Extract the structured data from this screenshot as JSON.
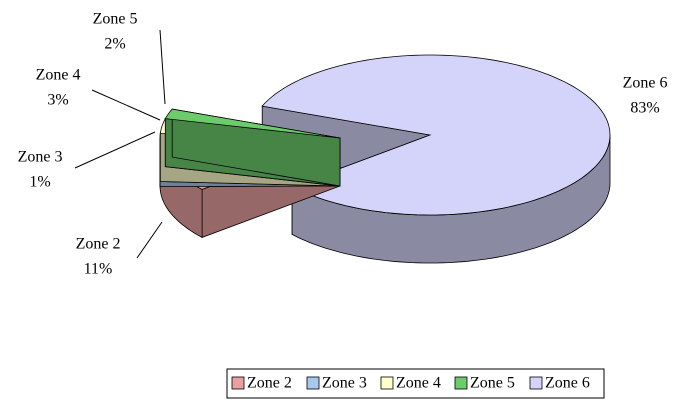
{
  "chart_data": {
    "type": "pie",
    "categories": [
      "Zone 2",
      "Zone 3",
      "Zone 4",
      "Zone 5",
      "Zone 6"
    ],
    "values": [
      11,
      1,
      3,
      2,
      83
    ],
    "value_labels": [
      "11%",
      "1%",
      "3%",
      "2%",
      "83%"
    ],
    "colors": [
      "#e8a0a0",
      "#a8c8ec",
      "#ffffcc",
      "#6ccc6c",
      "#d4d4fa"
    ],
    "legend": "bottom"
  }
}
